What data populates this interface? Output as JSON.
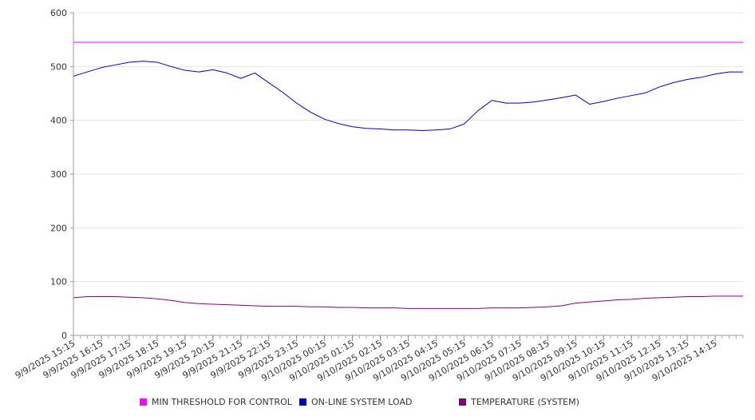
{
  "chart_data": {
    "type": "line",
    "title": "",
    "xlabel": "",
    "ylabel": "",
    "ylim": [
      0,
      600
    ],
    "y_ticks": [
      0,
      100,
      200,
      300,
      400,
      500,
      600
    ],
    "x_range": [
      "9/9/2025 15:15",
      "9/10/2025 15:15"
    ],
    "x_tick_labels": [
      "9/9/2025 15:15",
      "9/9/2025 16:15",
      "9/9/2025 17:15",
      "9/9/2025 18:15",
      "9/9/2025 19:15",
      "9/9/2025 20:15",
      "9/9/2025 21:15",
      "9/9/2025 22:15",
      "9/9/2025 23:15",
      "9/10/2025 00:15",
      "9/10/2025 01:15",
      "9/10/2025 02:15",
      "9/10/2025 03:15",
      "9/10/2025 04:15",
      "9/10/2025 05:15",
      "9/10/2025 06:15",
      "9/10/2025 07:15",
      "9/10/2025 08:15",
      "9/10/2025 09:15",
      "9/10/2025 10:15",
      "9/10/2025 11:15",
      "9/10/2025 12:15",
      "9/10/2025 13:15",
      "9/10/2025 14:15"
    ],
    "grid": true,
    "legend_position": "bottom",
    "x": [
      "9/9/2025 15:15",
      "9/9/2025 15:45",
      "9/9/2025 16:15",
      "9/9/2025 16:45",
      "9/9/2025 17:15",
      "9/9/2025 17:45",
      "9/9/2025 18:15",
      "9/9/2025 18:45",
      "9/9/2025 19:15",
      "9/9/2025 19:45",
      "9/9/2025 20:15",
      "9/9/2025 20:45",
      "9/9/2025 21:15",
      "9/9/2025 21:45",
      "9/9/2025 22:15",
      "9/9/2025 22:45",
      "9/9/2025 23:15",
      "9/9/2025 23:45",
      "9/10/2025 00:15",
      "9/10/2025 00:45",
      "9/10/2025 01:15",
      "9/10/2025 01:45",
      "9/10/2025 02:15",
      "9/10/2025 02:45",
      "9/10/2025 03:15",
      "9/10/2025 03:45",
      "9/10/2025 04:15",
      "9/10/2025 04:45",
      "9/10/2025 05:15",
      "9/10/2025 05:45",
      "9/10/2025 06:15",
      "9/10/2025 06:45",
      "9/10/2025 07:15",
      "9/10/2025 07:45",
      "9/10/2025 08:15",
      "9/10/2025 08:45",
      "9/10/2025 09:15",
      "9/10/2025 09:45",
      "9/10/2025 10:15",
      "9/10/2025 10:45",
      "9/10/2025 11:15",
      "9/10/2025 11:45",
      "9/10/2025 12:15",
      "9/10/2025 12:45",
      "9/10/2025 13:15",
      "9/10/2025 13:45",
      "9/10/2025 14:15",
      "9/10/2025 14:45",
      "9/10/2025 15:15"
    ],
    "series": [
      {
        "name": "MIN THRESHOLD FOR CONTROL",
        "color": "#ff00ff",
        "values": [
          545,
          545,
          545,
          545,
          545,
          545,
          545,
          545,
          545,
          545,
          545,
          545,
          545,
          545,
          545,
          545,
          545,
          545,
          545,
          545,
          545,
          545,
          545,
          545,
          545,
          545,
          545,
          545,
          545,
          545,
          545,
          545,
          545,
          545,
          545,
          545,
          545,
          545,
          545,
          545,
          545,
          545,
          545,
          545,
          545,
          545,
          545,
          545,
          545
        ]
      },
      {
        "name": "ON-LINE SYSTEM LOAD",
        "color": "#0000cc",
        "values": [
          482,
          490,
          498,
          503,
          508,
          510,
          508,
          500,
          493,
          490,
          494,
          488,
          478,
          488,
          470,
          452,
          432,
          415,
          402,
          394,
          388,
          385,
          384,
          382,
          382,
          381,
          382,
          384,
          393,
          418,
          437,
          432,
          432,
          434,
          438,
          442,
          447,
          430,
          435,
          441,
          446,
          451,
          462,
          470,
          476,
          480,
          486,
          490,
          490
        ]
      },
      {
        "name": "TEMPERATURE (SYSTEM)",
        "color": "#800080",
        "values": [
          70,
          72,
          72,
          72,
          71,
          70,
          68,
          65,
          61,
          59,
          58,
          57,
          56,
          55,
          54,
          54,
          54,
          53,
          53,
          52,
          52,
          51,
          51,
          51,
          50,
          50,
          50,
          50,
          50,
          50,
          51,
          51,
          51,
          52,
          53,
          55,
          60,
          62,
          64,
          66,
          67,
          69,
          70,
          71,
          72,
          72,
          73,
          73,
          73
        ]
      }
    ]
  }
}
